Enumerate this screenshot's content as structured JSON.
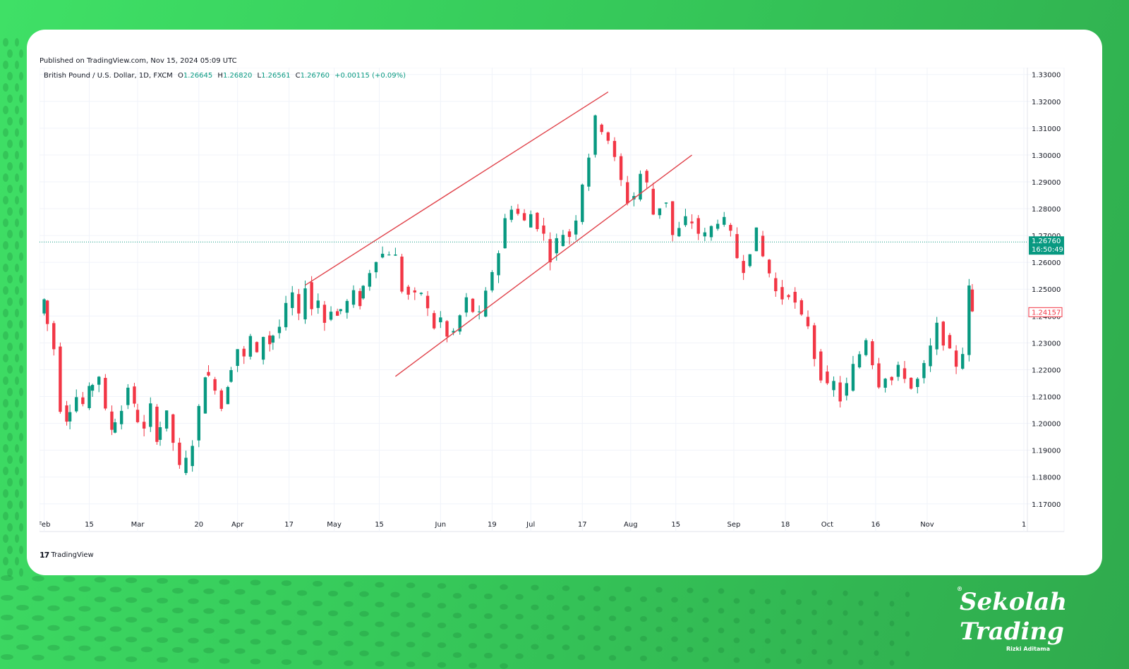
{
  "header": {
    "published": "Published on TradingView.com, Nov 15, 2024 05:09 UTC",
    "symbol": "British Pound / U.S. Dollar, 1D, FXCM",
    "o_label": "O",
    "o_value": "1.26645",
    "h_label": "H",
    "h_value": "1.26820",
    "l_label": "L",
    "l_value": "1.26561",
    "c_label": "C",
    "c_value": "1.26760",
    "change": "+0.00115 (+0.09%)"
  },
  "footer": {
    "logo_text": "TradingView"
  },
  "brand": {
    "line1": "Sekolah",
    "line2": "Trading",
    "sub": "Rizki Aditama",
    "reg": "®"
  },
  "colors": {
    "up": "#089981",
    "down": "#f23645",
    "channel": "#e0424a",
    "frame": "#36c95a"
  },
  "chart_data": {
    "type": "candlestick",
    "y_ticks": [
      "1.17000",
      "1.18000",
      "1.19000",
      "1.20000",
      "1.21000",
      "1.22000",
      "1.23000",
      "1.24000",
      "1.25000",
      "1.26000",
      "1.27000",
      "1.28000",
      "1.29000",
      "1.30000",
      "1.31000",
      "1.32000",
      "1.33000"
    ],
    "ylim": [
      1.166,
      1.3315
    ],
    "x_ticks": [
      {
        "label": "Feb",
        "date": "2024-02-01"
      },
      {
        "label": "15",
        "date": "2024-02-15"
      },
      {
        "label": "Mar",
        "date": "2024-03-01"
      },
      {
        "label": "20",
        "date": "2024-03-20"
      },
      {
        "label": "Apr",
        "date": "2024-04-01"
      },
      {
        "label": "17",
        "date": "2024-04-17"
      },
      {
        "label": "May",
        "date": "2024-05-01"
      },
      {
        "label": "15",
        "date": "2024-05-15"
      },
      {
        "label": "Jun",
        "date": "2024-06-03"
      },
      {
        "label": "19",
        "date": "2024-06-19"
      },
      {
        "label": "Jul",
        "date": "2024-07-01"
      },
      {
        "label": "17",
        "date": "2024-07-17"
      },
      {
        "label": "Aug",
        "date": "2024-08-01"
      },
      {
        "label": "15",
        "date": "2024-08-15"
      },
      {
        "label": "Sep",
        "date": "2024-09-02"
      },
      {
        "label": "18",
        "date": "2024-09-18"
      },
      {
        "label": "Oct",
        "date": "2024-10-01"
      },
      {
        "label": "16",
        "date": "2024-10-16"
      },
      {
        "label": "Nov",
        "date": "2024-11-01"
      },
      {
        "label": "1",
        "date": "2024-12-01"
      }
    ],
    "last_price": "1.26760",
    "countdown": "16:50:49",
    "marker_price": "1.24157",
    "channel_lines": [
      {
        "start": [
          "2024-04-22",
          1.2515
        ],
        "end": [
          "2024-07-25",
          1.3235
        ]
      },
      {
        "start": [
          "2024-05-20",
          1.2175
        ],
        "end": [
          "2024-08-20",
          1.3
        ],
        "note_end_date": "2024-08-20"
      }
    ],
    "path": [
      [
        "2024-01-31",
        1.241
      ],
      [
        "2024-02-02",
        1.246
      ],
      [
        "2024-02-05",
        1.228
      ],
      [
        "2024-02-07",
        1.206
      ],
      [
        "2024-02-09",
        1.202
      ],
      [
        "2024-02-12",
        1.21
      ],
      [
        "2024-02-14",
        1.207
      ],
      [
        "2024-02-16",
        1.212
      ],
      [
        "2024-02-19",
        1.218
      ],
      [
        "2024-02-21",
        1.204
      ],
      [
        "2024-02-23",
        1.198
      ],
      [
        "2024-02-26",
        1.205
      ],
      [
        "2024-02-28",
        1.214
      ],
      [
        "2024-03-01",
        1.206
      ],
      [
        "2024-03-04",
        1.197
      ],
      [
        "2024-03-06",
        1.206
      ],
      [
        "2024-03-08",
        1.195
      ],
      [
        "2024-03-11",
        1.203
      ],
      [
        "2024-03-13",
        1.193
      ],
      [
        "2024-03-15",
        1.183
      ],
      [
        "2024-03-17",
        1.186
      ],
      [
        "2024-03-19",
        1.193
      ],
      [
        "2024-03-21",
        1.205
      ],
      [
        "2024-03-23",
        1.219
      ],
      [
        "2024-03-26",
        1.214
      ],
      [
        "2024-03-28",
        1.206
      ],
      [
        "2024-03-30",
        1.215
      ],
      [
        "2024-04-02",
        1.228
      ],
      [
        "2024-04-04",
        1.224
      ],
      [
        "2024-04-06",
        1.232
      ],
      [
        "2024-04-08",
        1.225
      ],
      [
        "2024-04-10",
        1.233
      ],
      [
        "2024-04-12",
        1.23
      ],
      [
        "2024-04-15",
        1.236
      ],
      [
        "2024-04-17",
        1.243
      ],
      [
        "2024-04-19",
        1.248
      ],
      [
        "2024-04-21",
        1.239
      ],
      [
        "2024-04-23",
        1.252
      ],
      [
        "2024-04-25",
        1.243
      ],
      [
        "2024-04-27",
        1.246
      ],
      [
        "2024-04-29",
        1.238
      ],
      [
        "2024-05-01",
        1.243
      ],
      [
        "2024-05-03",
        1.24
      ],
      [
        "2024-05-06",
        1.245
      ],
      [
        "2024-05-08",
        1.248
      ],
      [
        "2024-05-10",
        1.245
      ],
      [
        "2024-05-13",
        1.257
      ],
      [
        "2024-05-15",
        1.262
      ],
      [
        "2024-05-17",
        1.263
      ],
      [
        "2024-05-19",
        1.264
      ],
      [
        "2024-05-21",
        1.262
      ],
      [
        "2024-05-23",
        1.25
      ],
      [
        "2024-05-25",
        1.248
      ],
      [
        "2024-05-27",
        1.247
      ],
      [
        "2024-05-29",
        1.249
      ],
      [
        "2024-05-31",
        1.242
      ],
      [
        "2024-06-02",
        1.236
      ],
      [
        "2024-06-04",
        1.239
      ],
      [
        "2024-06-06",
        1.232
      ],
      [
        "2024-06-08",
        1.234
      ],
      [
        "2024-06-10",
        1.24
      ],
      [
        "2024-06-12",
        1.246
      ],
      [
        "2024-06-14",
        1.242
      ],
      [
        "2024-06-16",
        1.24
      ],
      [
        "2024-06-18",
        1.248
      ],
      [
        "2024-06-20",
        1.257
      ],
      [
        "2024-06-22",
        1.264
      ],
      [
        "2024-06-24",
        1.276
      ],
      [
        "2024-06-26",
        1.281
      ],
      [
        "2024-06-28",
        1.278
      ],
      [
        "2024-06-30",
        1.275
      ],
      [
        "2024-07-02",
        1.278
      ],
      [
        "2024-07-04",
        1.274
      ],
      [
        "2024-07-06",
        1.27
      ],
      [
        "2024-07-08",
        1.262
      ],
      [
        "2024-07-10",
        1.268
      ],
      [
        "2024-07-12",
        1.271
      ],
      [
        "2024-07-14",
        1.27
      ],
      [
        "2024-07-16",
        1.277
      ],
      [
        "2024-07-18",
        1.29
      ],
      [
        "2024-07-20",
        1.3
      ],
      [
        "2024-07-22",
        1.313
      ],
      [
        "2024-07-24",
        1.31
      ],
      [
        "2024-07-26",
        1.306
      ],
      [
        "2024-07-28",
        1.298
      ],
      [
        "2024-07-30",
        1.29
      ],
      [
        "2024-08-01",
        1.283
      ],
      [
        "2024-08-03",
        1.285
      ],
      [
        "2024-08-05",
        1.293
      ],
      [
        "2024-08-07",
        1.289
      ],
      [
        "2024-08-09",
        1.278
      ],
      [
        "2024-08-11",
        1.281
      ],
      [
        "2024-08-13",
        1.283
      ],
      [
        "2024-08-15",
        1.27
      ],
      [
        "2024-08-17",
        1.272
      ],
      [
        "2024-08-19",
        1.276
      ],
      [
        "2024-08-21",
        1.275
      ],
      [
        "2024-08-23",
        1.271
      ],
      [
        "2024-08-25",
        1.27
      ],
      [
        "2024-08-27",
        1.273
      ],
      [
        "2024-08-29",
        1.276
      ],
      [
        "2024-08-31",
        1.275
      ],
      [
        "2024-09-02",
        1.27
      ],
      [
        "2024-09-04",
        1.262
      ],
      [
        "2024-09-06",
        1.258
      ],
      [
        "2024-09-08",
        1.265
      ],
      [
        "2024-09-10",
        1.271
      ],
      [
        "2024-09-12",
        1.262
      ],
      [
        "2024-09-14",
        1.256
      ],
      [
        "2024-09-16",
        1.249
      ],
      [
        "2024-09-18",
        1.247
      ],
      [
        "2024-09-20",
        1.249
      ],
      [
        "2024-09-22",
        1.244
      ],
      [
        "2024-09-24",
        1.239
      ],
      [
        "2024-09-26",
        1.237
      ],
      [
        "2024-09-28",
        1.225
      ],
      [
        "2024-09-30",
        1.218
      ],
      [
        "2024-10-02",
        1.213
      ],
      [
        "2024-10-04",
        1.215
      ],
      [
        "2024-10-06",
        1.209
      ],
      [
        "2024-10-08",
        1.214
      ],
      [
        "2024-10-10",
        1.221
      ],
      [
        "2024-10-12",
        1.226
      ],
      [
        "2024-10-14",
        1.232
      ],
      [
        "2024-10-16",
        1.223
      ],
      [
        "2024-10-18",
        1.215
      ],
      [
        "2024-10-20",
        1.218
      ],
      [
        "2024-10-22",
        1.216
      ],
      [
        "2024-10-24",
        1.22
      ],
      [
        "2024-10-26",
        1.218
      ],
      [
        "2024-10-28",
        1.213
      ],
      [
        "2024-10-30",
        1.216
      ],
      [
        "2024-11-01",
        1.221
      ],
      [
        "2024-11-03",
        1.228
      ],
      [
        "2024-11-05",
        1.236
      ],
      [
        "2024-11-07",
        1.231
      ],
      [
        "2024-11-09",
        1.226
      ],
      [
        "2024-11-11",
        1.222
      ],
      [
        "2024-11-13",
        1.227
      ],
      [
        "2024-11-15",
        1.25
      ],
      [
        "2024-11-16",
        1.2416
      ]
    ]
  }
}
